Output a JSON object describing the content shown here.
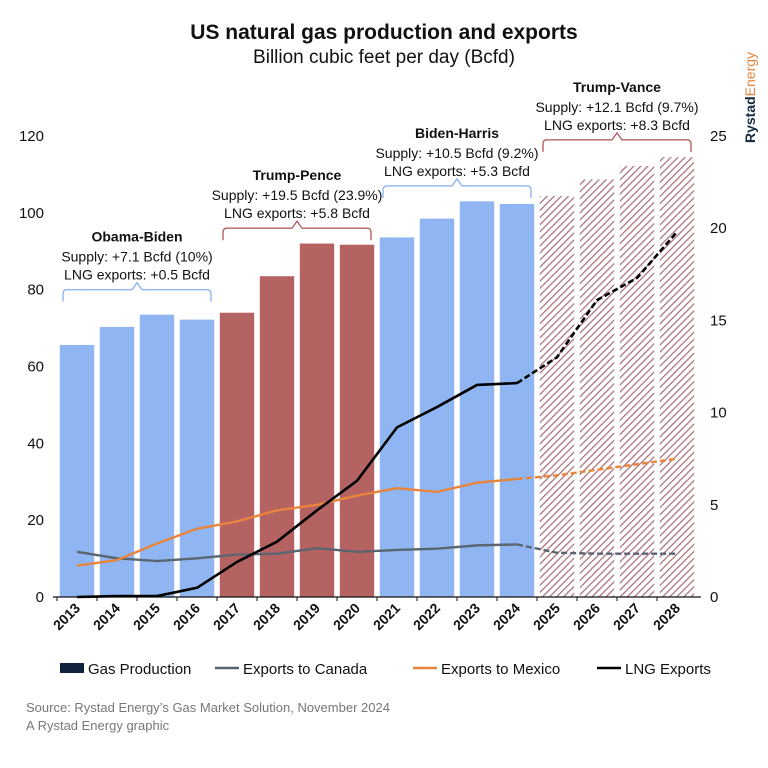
{
  "colors": {
    "biden": "#8fb6f2",
    "trump": "#b56262",
    "forecast": "#a66b74",
    "canada": "#5a6570",
    "mexico": "#e8843c",
    "lng": "#000000",
    "legend_gas": "#12223e",
    "brand_rystad": "#1a2b44",
    "brand_energy": "#e8843c"
  },
  "brand": {
    "part1": "Rystad",
    "part2": "Energy"
  },
  "source": {
    "line1": "Source: Rystad Energy’s Gas Market Solution, November 2024",
    "line2": "A Rystad Energy graphic"
  },
  "chart_data": {
    "type": "bar",
    "title": "US natural gas production and exports",
    "subtitle": "Billion cubic feet per day (Bcfd)",
    "categories": [
      "2013",
      "2014",
      "2015",
      "2016",
      "2017",
      "2018",
      "2019",
      "2020",
      "2021",
      "2022",
      "2023",
      "2024",
      "2025",
      "2026",
      "2027",
      "2028"
    ],
    "ylim": [
      0,
      120
    ],
    "yticks": [
      0,
      20,
      40,
      60,
      80,
      100,
      120
    ],
    "y2lim": [
      0,
      25
    ],
    "y2ticks": [
      0,
      5,
      10,
      15,
      20,
      25
    ],
    "bar_series": {
      "name": "Gas Production",
      "axis": "left",
      "values": [
        65.6,
        70.3,
        73.5,
        72.2,
        74.0,
        83.5,
        92.0,
        91.7,
        93.6,
        98.5,
        103.0,
        102.3,
        104.4,
        108.7,
        112.2,
        114.5
      ],
      "styles": [
        "biden",
        "biden",
        "biden",
        "biden",
        "trump",
        "trump",
        "trump",
        "trump",
        "biden",
        "biden",
        "biden",
        "biden",
        "forecast",
        "forecast",
        "forecast",
        "forecast"
      ]
    },
    "line_series": [
      {
        "name": "Exports to Canada",
        "axis": "right",
        "color_key": "canada",
        "values": [
          2.45,
          2.1,
          1.95,
          2.1,
          2.3,
          2.35,
          2.65,
          2.45,
          2.55,
          2.62,
          2.8,
          2.85,
          2.4,
          2.35,
          2.35,
          2.35
        ]
      },
      {
        "name": "Exports to Mexico",
        "axis": "right",
        "color_key": "mexico",
        "values": [
          1.7,
          2.0,
          2.9,
          3.7,
          4.1,
          4.7,
          5.0,
          5.5,
          5.9,
          5.7,
          6.2,
          6.4,
          6.6,
          6.9,
          7.2,
          7.5
        ]
      },
      {
        "name": "LNG Exports",
        "axis": "right",
        "color_key": "lng",
        "values": [
          0.0,
          0.05,
          0.05,
          0.5,
          1.9,
          3.0,
          4.7,
          6.3,
          9.2,
          10.3,
          11.5,
          11.6,
          13.0,
          16.1,
          17.3,
          19.8
        ]
      }
    ],
    "legend": [
      "Gas Production",
      "Exports to Canada",
      "Exports to Mexico",
      "LNG Exports"
    ],
    "annotations": [
      {
        "title": "Obama-Biden",
        "lines": [
          "Supply: +7.1 Bcfd (10%)",
          "LNG exports: +0.5 Bcfd"
        ],
        "from": 0,
        "to": 3,
        "color_key": "biden",
        "bracket_y": 80
      },
      {
        "title": "Trump-Pence",
        "lines": [
          "Supply: +19.5 Bcfd (23.9%)",
          "LNG exports: +5.8 Bcfd"
        ],
        "from": 4,
        "to": 7,
        "color_key": "trump",
        "bracket_y": 96
      },
      {
        "title": "Biden-Harris",
        "lines": [
          "Supply: +10.5 Bcfd (9.2%)",
          "LNG exports: +5.3 Bcfd"
        ],
        "from": 8,
        "to": 11,
        "color_key": "biden",
        "bracket_y": 107
      },
      {
        "title": "Trump-Vance",
        "lines": [
          "Supply: +12.1 Bcfd (9.7%)",
          "LNG exports: +8.3 Bcfd"
        ],
        "from": 12,
        "to": 15,
        "color_key": "trump",
        "bracket_y": 119
      }
    ]
  }
}
